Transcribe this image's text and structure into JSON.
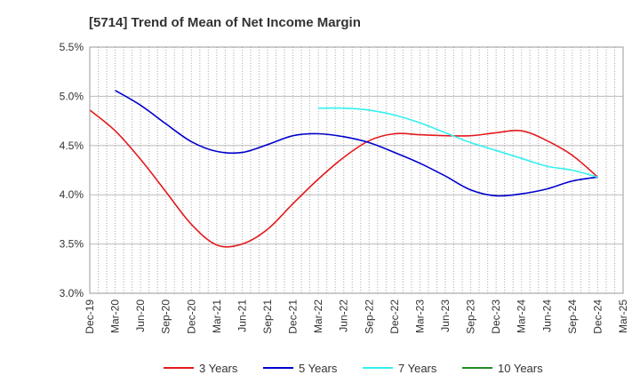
{
  "chart_data": {
    "type": "line",
    "title": "[5714]  Trend of Mean of Net Income Margin",
    "xlabel": "",
    "ylabel": "",
    "x_ticks": [
      "Dec-19",
      "Mar-20",
      "Jun-20",
      "Sep-20",
      "Dec-20",
      "Mar-21",
      "Jun-21",
      "Sep-21",
      "Dec-21",
      "Mar-22",
      "Jun-22",
      "Sep-22",
      "Dec-22",
      "Mar-23",
      "Jun-23",
      "Sep-23",
      "Dec-23",
      "Mar-24",
      "Jun-24",
      "Sep-24",
      "Dec-24",
      "Mar-25"
    ],
    "y_ticks": [
      "3.0%",
      "3.5%",
      "4.0%",
      "4.5%",
      "5.0%",
      "5.5%"
    ],
    "ylim": [
      3.0,
      5.5
    ],
    "grid": true,
    "legend_position": "bottom",
    "series": [
      {
        "name": "3 Years",
        "color": "#e31a1c",
        "x": [
          "Dec-19",
          "Mar-20",
          "Jun-20",
          "Sep-20",
          "Dec-20",
          "Mar-21",
          "Jun-21",
          "Sep-21",
          "Dec-21",
          "Mar-22",
          "Jun-22",
          "Sep-22",
          "Dec-22",
          "Mar-23",
          "Jun-23",
          "Sep-23",
          "Dec-23",
          "Mar-24",
          "Jun-24",
          "Sep-24",
          "Dec-24"
        ],
        "values": [
          4.86,
          4.65,
          4.36,
          4.03,
          3.7,
          3.49,
          3.5,
          3.65,
          3.91,
          4.16,
          4.38,
          4.55,
          4.62,
          4.61,
          4.6,
          4.6,
          4.63,
          4.65,
          4.55,
          4.4,
          4.18
        ]
      },
      {
        "name": "5 Years",
        "color": "#0000cc",
        "x": [
          "Mar-20",
          "Jun-20",
          "Sep-20",
          "Dec-20",
          "Mar-21",
          "Jun-21",
          "Sep-21",
          "Dec-21",
          "Mar-22",
          "Jun-22",
          "Sep-22",
          "Dec-22",
          "Mar-23",
          "Jun-23",
          "Sep-23",
          "Dec-23",
          "Mar-24",
          "Jun-24",
          "Sep-24",
          "Dec-24"
        ],
        "values": [
          5.06,
          4.91,
          4.72,
          4.54,
          4.44,
          4.43,
          4.51,
          4.6,
          4.62,
          4.59,
          4.53,
          4.43,
          4.32,
          4.19,
          4.05,
          3.99,
          4.01,
          4.06,
          4.14,
          4.18
        ]
      },
      {
        "name": "7 Years",
        "color": "#33f0f0",
        "x": [
          "Mar-22",
          "Jun-22",
          "Sep-22",
          "Dec-22",
          "Mar-23",
          "Jun-23",
          "Sep-23",
          "Dec-23",
          "Mar-24",
          "Jun-24",
          "Sep-24",
          "Dec-24"
        ],
        "values": [
          4.88,
          4.88,
          4.86,
          4.81,
          4.73,
          4.63,
          4.53,
          4.45,
          4.37,
          4.29,
          4.25,
          4.18
        ]
      },
      {
        "name": "10 Years",
        "color": "#228b22",
        "x": [],
        "values": []
      }
    ]
  }
}
